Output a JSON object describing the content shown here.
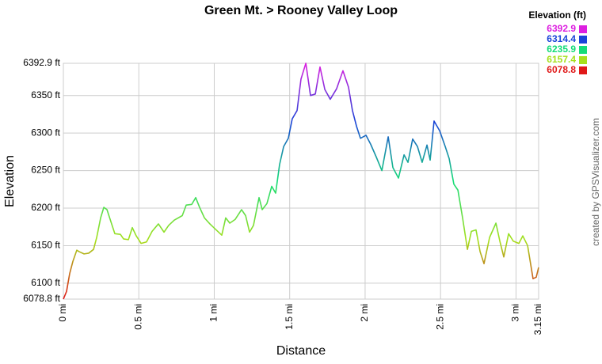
{
  "chart_data": {
    "type": "line",
    "title": "Green Mt. > Rooney Valley Loop",
    "x_label": "Distance",
    "y_label": "Elevation",
    "credit": "created by GPSVisualizer.com",
    "legend": {
      "title": "Elevation (ft)",
      "entries": [
        {
          "value": 6392.9,
          "color": "#dd1fe0"
        },
        {
          "value": 6314.4,
          "color": "#1a44d8"
        },
        {
          "value": 6235.9,
          "color": "#14dc78"
        },
        {
          "value": 6157.4,
          "color": "#a6e01c"
        },
        {
          "value": 6078.8,
          "color": "#e01818"
        }
      ]
    },
    "grid": true,
    "xlim": [
      0,
      3.15
    ],
    "ylim": [
      6078.8,
      6392.9
    ],
    "xticks": [
      {
        "value": 0,
        "label": "0 mi"
      },
      {
        "value": 0.5,
        "label": "0.5 mi"
      },
      {
        "value": 1,
        "label": "1 mi"
      },
      {
        "value": 1.5,
        "label": "1.5 mi"
      },
      {
        "value": 2,
        "label": "2 mi"
      },
      {
        "value": 2.5,
        "label": "2.5 mi"
      },
      {
        "value": 3,
        "label": "3 mi"
      },
      {
        "value": 3.15,
        "label": "3.15 mi"
      }
    ],
    "yticks": [
      {
        "value": 6078.8,
        "label": "6078.8 ft"
      },
      {
        "value": 6100,
        "label": "6100 ft"
      },
      {
        "value": 6150,
        "label": "6150 ft"
      },
      {
        "value": 6200,
        "label": "6200 ft"
      },
      {
        "value": 6250,
        "label": "6250 ft"
      },
      {
        "value": 6300,
        "label": "6300 ft"
      },
      {
        "value": 6350,
        "label": "6350 ft"
      },
      {
        "value": 6392.9,
        "label": "6392.9 ft"
      }
    ],
    "x": [
      0,
      0.021,
      0.042,
      0.063,
      0.089,
      0.105,
      0.137,
      0.168,
      0.2,
      0.221,
      0.247,
      0.268,
      0.289,
      0.315,
      0.341,
      0.378,
      0.399,
      0.431,
      0.457,
      0.483,
      0.515,
      0.551,
      0.588,
      0.63,
      0.667,
      0.698,
      0.735,
      0.788,
      0.814,
      0.851,
      0.877,
      0.903,
      0.935,
      0.971,
      1.013,
      1.05,
      1.076,
      1.103,
      1.139,
      1.181,
      1.208,
      1.234,
      1.26,
      1.297,
      1.318,
      1.349,
      1.381,
      1.407,
      1.433,
      1.46,
      1.491,
      1.517,
      1.549,
      1.575,
      1.607,
      1.638,
      1.67,
      1.701,
      1.733,
      1.769,
      1.811,
      1.853,
      1.89,
      1.916,
      1.943,
      1.969,
      2.006,
      2.037,
      2.074,
      2.111,
      2.153,
      2.184,
      2.221,
      2.258,
      2.284,
      2.315,
      2.347,
      2.378,
      2.41,
      2.431,
      2.457,
      2.494,
      2.531,
      2.557,
      2.588,
      2.615,
      2.646,
      2.678,
      2.704,
      2.735,
      2.762,
      2.788,
      2.825,
      2.867,
      2.893,
      2.919,
      2.951,
      2.982,
      3.019,
      3.045,
      3.077,
      3.113,
      3.134,
      3.15
    ],
    "values": [
      6078.8,
      6089,
      6113,
      6129,
      6144,
      6142,
      6139,
      6140,
      6145,
      6161,
      6187,
      6201,
      6198,
      6182,
      6166,
      6165,
      6159,
      6158,
      6174,
      6163,
      6153,
      6155,
      6169,
      6179,
      6168,
      6177,
      6184,
      6190,
      6204,
      6205,
      6214,
      6201,
      6187,
      6179,
      6171,
      6164,
      6187,
      6180,
      6185,
      6198,
      6190,
      6168,
      6177,
      6214,
      6198,
      6206,
      6229,
      6220,
      6258,
      6282,
      6293,
      6319,
      6330,
      6372,
      6392.9,
      6350,
      6352,
      6388,
      6358,
      6345,
      6359,
      6383,
      6361,
      6330,
      6309,
      6293,
      6297,
      6285,
      6268,
      6250,
      6295,
      6254,
      6240,
      6271,
      6261,
      6292,
      6282,
      6261,
      6284,
      6264,
      6316,
      6303,
      6282,
      6266,
      6232,
      6224,
      6187,
      6145,
      6169,
      6171,
      6142,
      6126,
      6161,
      6180,
      6156,
      6135,
      6166,
      6156,
      6153,
      6163,
      6150,
      6106,
      6108,
      6121
    ]
  }
}
